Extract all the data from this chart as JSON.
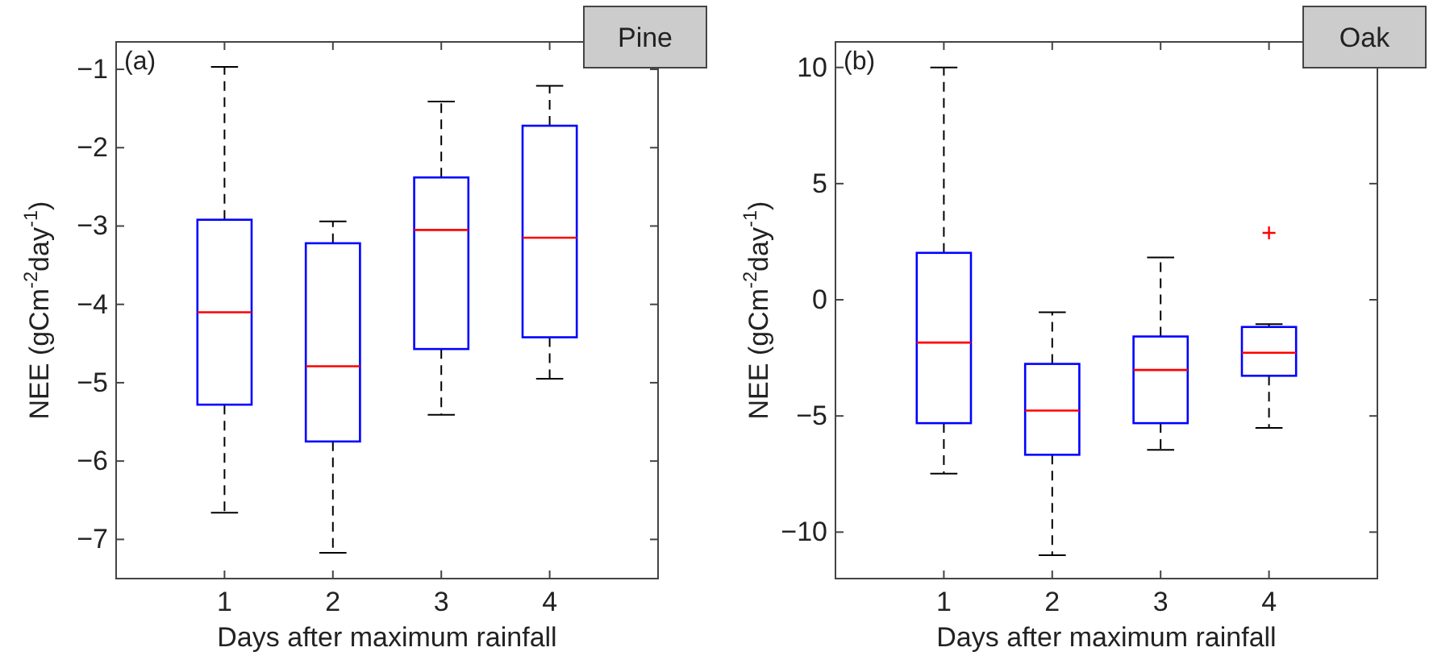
{
  "chart_data": [
    {
      "type": "box",
      "title": "Pine",
      "xlabel": "Days after maximum rainfall",
      "ylabel": "NEE (gCm$^{-2}$day$^{-1}$)",
      "annotations": [
        "(a)"
      ],
      "categories": [
        "1",
        "2",
        "3",
        "4"
      ],
      "ylim": [
        -7.5,
        -0.65
      ],
      "yticks": [
        -7,
        -6,
        -5,
        -4,
        -3,
        -2,
        -1
      ],
      "grid": false,
      "series": [
        {
          "color": "#0000ff",
          "boxes": [
            {
              "low": -6.66,
              "q1": -5.28,
              "median": -4.1,
              "q3": -2.92,
              "high": -0.97
            },
            {
              "low": -7.17,
              "q1": -5.75,
              "median": -4.79,
              "q3": -3.22,
              "high": -2.94
            },
            {
              "low": -5.41,
              "q1": -4.57,
              "median": -3.05,
              "q3": -2.38,
              "high": -1.41
            },
            {
              "low": -4.95,
              "q1": -4.42,
              "median": -3.15,
              "q3": -1.72,
              "high": -1.21
            }
          ]
        }
      ]
    },
    {
      "type": "box",
      "title": "Oak",
      "xlabel": "Days after maximum rainfall",
      "ylabel": "NEE (gCm$^{-2}$day$^{-1}$)",
      "annotations": [
        "(b)"
      ],
      "categories": [
        "1",
        "2",
        "3",
        "4"
      ],
      "ylim": [
        -12,
        11.1
      ],
      "yticks": [
        -10,
        -5,
        0,
        5,
        10
      ],
      "grid": false,
      "series": [
        {
          "color": "#0000ff",
          "boxes": [
            {
              "low": -7.48,
              "q1": -5.31,
              "median": -1.84,
              "q3": 2.02,
              "high": 10
            },
            {
              "low": -10.99,
              "q1": -6.67,
              "median": -4.77,
              "q3": -2.76,
              "high": -0.54
            },
            {
              "low": -6.46,
              "q1": -5.31,
              "median": -3.02,
              "q3": -1.58,
              "high": 1.82
            },
            {
              "low": -5.51,
              "q1": -3.27,
              "median": -2.28,
              "q3": -1.17,
              "high": -1.05,
              "outliers": [
                2.88
              ]
            }
          ]
        }
      ]
    }
  ]
}
